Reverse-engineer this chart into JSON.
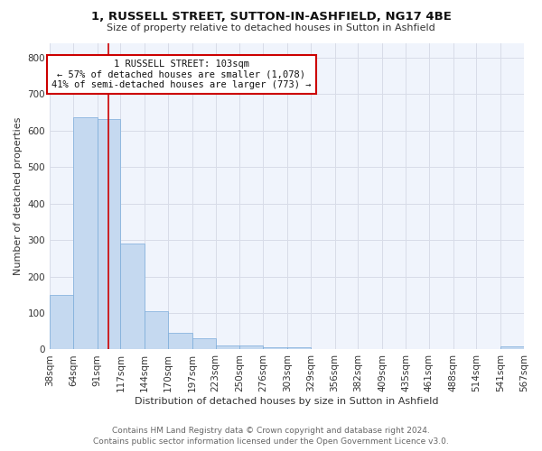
{
  "title1": "1, RUSSELL STREET, SUTTON-IN-ASHFIELD, NG17 4BE",
  "title2": "Size of property relative to detached houses in Sutton in Ashfield",
  "xlabel": "Distribution of detached houses by size in Sutton in Ashfield",
  "ylabel": "Number of detached properties",
  "bar_color": "#c5d9f0",
  "bar_edge_color": "#7aabda",
  "background_color": "#f0f4fc",
  "grid_color": "#d8dce8",
  "fig_bg_color": "#ffffff",
  "red_line_x": 103,
  "annotation_line1": "1 RUSSELL STREET: 103sqm",
  "annotation_line2": "← 57% of detached houses are smaller (1,078)",
  "annotation_line3": "41% of semi-detached houses are larger (773) →",
  "bin_edges": [
    38,
    64,
    91,
    117,
    144,
    170,
    197,
    223,
    250,
    276,
    303,
    329,
    356,
    382,
    409,
    435,
    461,
    488,
    514,
    541,
    567
  ],
  "bar_heights": [
    150,
    635,
    630,
    290,
    105,
    45,
    30,
    10,
    10,
    5,
    5,
    0,
    0,
    0,
    0,
    0,
    0,
    0,
    0,
    8
  ],
  "ylim": [
    0,
    840
  ],
  "yticks": [
    0,
    100,
    200,
    300,
    400,
    500,
    600,
    700,
    800
  ],
  "footer_line1": "Contains HM Land Registry data © Crown copyright and database right 2024.",
  "footer_line2": "Contains public sector information licensed under the Open Government Licence v3.0.",
  "annotation_box_color": "#ffffff",
  "annotation_box_edge": "#cc0000",
  "red_line_color": "#cc0000",
  "title1_fontsize": 9.5,
  "title2_fontsize": 8.0,
  "ylabel_fontsize": 8.0,
  "xlabel_fontsize": 8.0,
  "tick_fontsize": 7.5,
  "footer_fontsize": 6.5,
  "annot_fontsize": 7.5
}
